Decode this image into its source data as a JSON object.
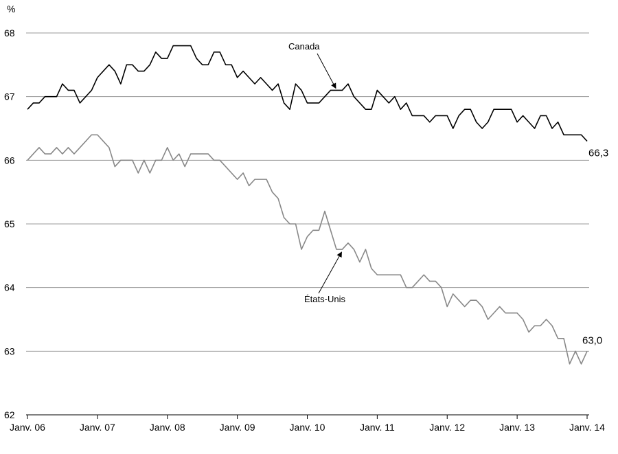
{
  "chart_data": {
    "type": "line",
    "ylabel": "%",
    "ylim": [
      62,
      68
    ],
    "yticks": [
      "62",
      "63",
      "64",
      "65",
      "66",
      "67",
      "68"
    ],
    "xticks": [
      "Janv. 06",
      "Janv. 07",
      "Janv. 08",
      "Janv. 09",
      "Janv. 10",
      "Janv. 11",
      "Janv. 12",
      "Janv. 13",
      "Janv. 14"
    ],
    "x_start": "2006-01",
    "grid": "horizontal",
    "series": [
      {
        "name": "Canada",
        "color": "#000000",
        "end_label": "66,3",
        "values": [
          66.8,
          66.9,
          66.9,
          67.0,
          67.0,
          67.0,
          67.2,
          67.1,
          67.1,
          66.9,
          67.0,
          67.1,
          67.3,
          67.4,
          67.5,
          67.4,
          67.2,
          67.5,
          67.5,
          67.4,
          67.4,
          67.5,
          67.7,
          67.6,
          67.6,
          67.8,
          67.8,
          67.8,
          67.8,
          67.6,
          67.5,
          67.5,
          67.7,
          67.7,
          67.5,
          67.5,
          67.3,
          67.4,
          67.3,
          67.2,
          67.3,
          67.2,
          67.1,
          67.2,
          66.9,
          66.8,
          67.2,
          67.1,
          66.9,
          66.9,
          66.9,
          67.0,
          67.1,
          67.1,
          67.1,
          67.2,
          67.0,
          66.9,
          66.8,
          66.8,
          67.1,
          67.0,
          66.9,
          67.0,
          66.8,
          66.9,
          66.7,
          66.7,
          66.7,
          66.6,
          66.7,
          66.7,
          66.7,
          66.5,
          66.7,
          66.8,
          66.8,
          66.6,
          66.5,
          66.6,
          66.8,
          66.8,
          66.8,
          66.8,
          66.6,
          66.7,
          66.6,
          66.5,
          66.7,
          66.7,
          66.5,
          66.6,
          66.4,
          66.4,
          66.4,
          66.4,
          66.3
        ]
      },
      {
        "name": "États-Unis",
        "color": "#888888",
        "end_label": "63,0",
        "values": [
          66.0,
          66.1,
          66.2,
          66.1,
          66.1,
          66.2,
          66.1,
          66.2,
          66.1,
          66.2,
          66.3,
          66.4,
          66.4,
          66.3,
          66.2,
          65.9,
          66.0,
          66.0,
          66.0,
          65.8,
          66.0,
          65.8,
          66.0,
          66.0,
          66.2,
          66.0,
          66.1,
          65.9,
          66.1,
          66.1,
          66.1,
          66.1,
          66.0,
          66.0,
          65.9,
          65.8,
          65.7,
          65.8,
          65.6,
          65.7,
          65.7,
          65.7,
          65.5,
          65.4,
          65.1,
          65.0,
          65.0,
          64.6,
          64.8,
          64.9,
          64.9,
          65.2,
          64.9,
          64.6,
          64.6,
          64.7,
          64.6,
          64.4,
          64.6,
          64.3,
          64.2,
          64.2,
          64.2,
          64.2,
          64.2,
          64.0,
          64.0,
          64.1,
          64.2,
          64.1,
          64.1,
          64.0,
          63.7,
          63.9,
          63.8,
          63.7,
          63.8,
          63.8,
          63.7,
          63.5,
          63.6,
          63.7,
          63.6,
          63.6,
          63.6,
          63.5,
          63.3,
          63.4,
          63.4,
          63.5,
          63.4,
          63.2,
          63.2,
          62.8,
          63.0,
          62.8,
          63.0
        ]
      }
    ],
    "annotations": [
      {
        "text": "Canada",
        "series": 0,
        "arrow_to_index": 53
      },
      {
        "text": "États-Unis",
        "series": 1,
        "arrow_to_index": 54
      }
    ]
  }
}
